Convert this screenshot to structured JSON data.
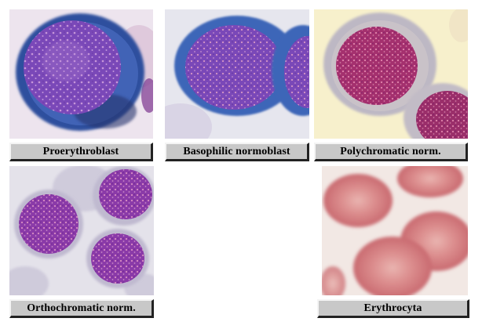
{
  "panels": [
    {
      "id": "proerythroblast",
      "label": "Proerythroblast"
    },
    {
      "id": "basophilic",
      "label": "Basophilic normoblast"
    },
    {
      "id": "polychromatic",
      "label": "Polychromatic norm."
    },
    {
      "id": "orthochromatic",
      "label": "Orthochromatic norm."
    },
    {
      "id": "erythrocyta",
      "label": "Erythrocyta"
    }
  ],
  "colors": {
    "label_background": "#c8c8c8",
    "nucleus_purple": "#7a48b8",
    "basophilic_cytoplasm": "#3e66b8",
    "erythrocyte_pink": "#d98686",
    "polychromatic_background": "#f7f0cc"
  }
}
